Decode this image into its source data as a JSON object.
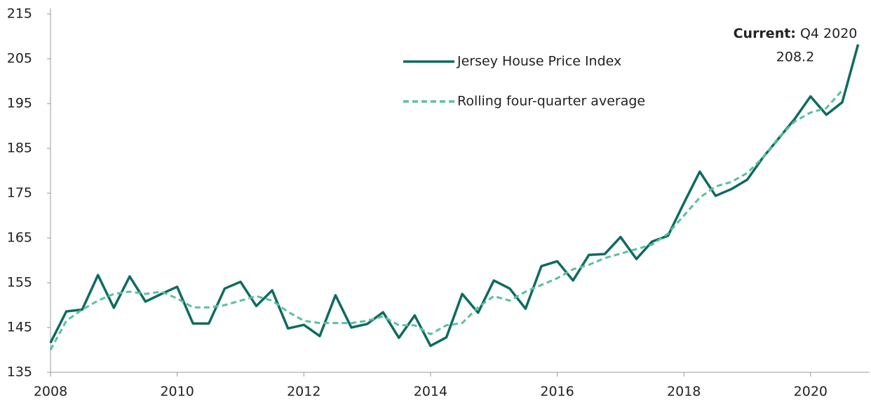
{
  "chart_data": {
    "type": "line",
    "categories": [
      "2008",
      null,
      null,
      null,
      null,
      null,
      null,
      null,
      "2010",
      null,
      null,
      null,
      null,
      null,
      null,
      null,
      "2012",
      null,
      null,
      null,
      null,
      null,
      null,
      null,
      "2014",
      null,
      null,
      null,
      null,
      null,
      null,
      null,
      "2016",
      null,
      null,
      null,
      null,
      null,
      null,
      null,
      "2018",
      null,
      null,
      null,
      null,
      null,
      null,
      null,
      "2020",
      null,
      null,
      null
    ],
    "series": [
      {
        "name": "Jersey House Price Index",
        "color": "#0d6b5f",
        "dash": false,
        "values": [
          141.6,
          148.6,
          149,
          156.7,
          149.4,
          156.4,
          150.8,
          152.5,
          154.1,
          145.9,
          145.9,
          153.7,
          155.2,
          149.8,
          153.3,
          144.8,
          145.6,
          143.1,
          152.2,
          145,
          145.8,
          148.4,
          142.7,
          147.7,
          140.9,
          142.8,
          152.5,
          148.3,
          155.5,
          153.7,
          149.2,
          158.7,
          159.8,
          155.5,
          161.2,
          161.4,
          165.2,
          160.3,
          164.2,
          165.5,
          172.8,
          179.8,
          174.4,
          175.9,
          178,
          183,
          187.3,
          191.6,
          196.6,
          192.5,
          195.3,
          208.2
        ],
        "value_labels": [
          null,
          null,
          null,
          null,
          null,
          null,
          null,
          null,
          null,
          null,
          null,
          null,
          null,
          null,
          null,
          null,
          null,
          null,
          null,
          null,
          null,
          null,
          null,
          null,
          null,
          null,
          null,
          null,
          null,
          null,
          null,
          null,
          null,
          null,
          null,
          null,
          null,
          null,
          null,
          null,
          null,
          null,
          null,
          null,
          null,
          null,
          null,
          null,
          null,
          null,
          null,
          "208.2"
        ]
      },
      {
        "name": "Rolling four-quarter average",
        "color": "#5cbf9f",
        "dash": true,
        "values": [
          140,
          146.5,
          149,
          151,
          152.5,
          153,
          152.5,
          153,
          151.5,
          149.5,
          149.5,
          150,
          151,
          152,
          151,
          148.5,
          146.5,
          146,
          146,
          146,
          146.5,
          147.5,
          145.5,
          145.5,
          143.5,
          145.5,
          146,
          149.5,
          152,
          151,
          153,
          154.5,
          156,
          158,
          159,
          160.5,
          161.5,
          162.5,
          163.5,
          166,
          170,
          174,
          176.5,
          177.5,
          179.5,
          183,
          187.5,
          191,
          193,
          194,
          198,
          null
        ]
      }
    ],
    "annotation": {
      "bold": "Current:",
      "text": "Q4 2020"
    },
    "ylim": [
      135,
      215
    ],
    "yticks": [
      135,
      145,
      155,
      165,
      175,
      185,
      195,
      205,
      215
    ],
    "grid": false
  }
}
